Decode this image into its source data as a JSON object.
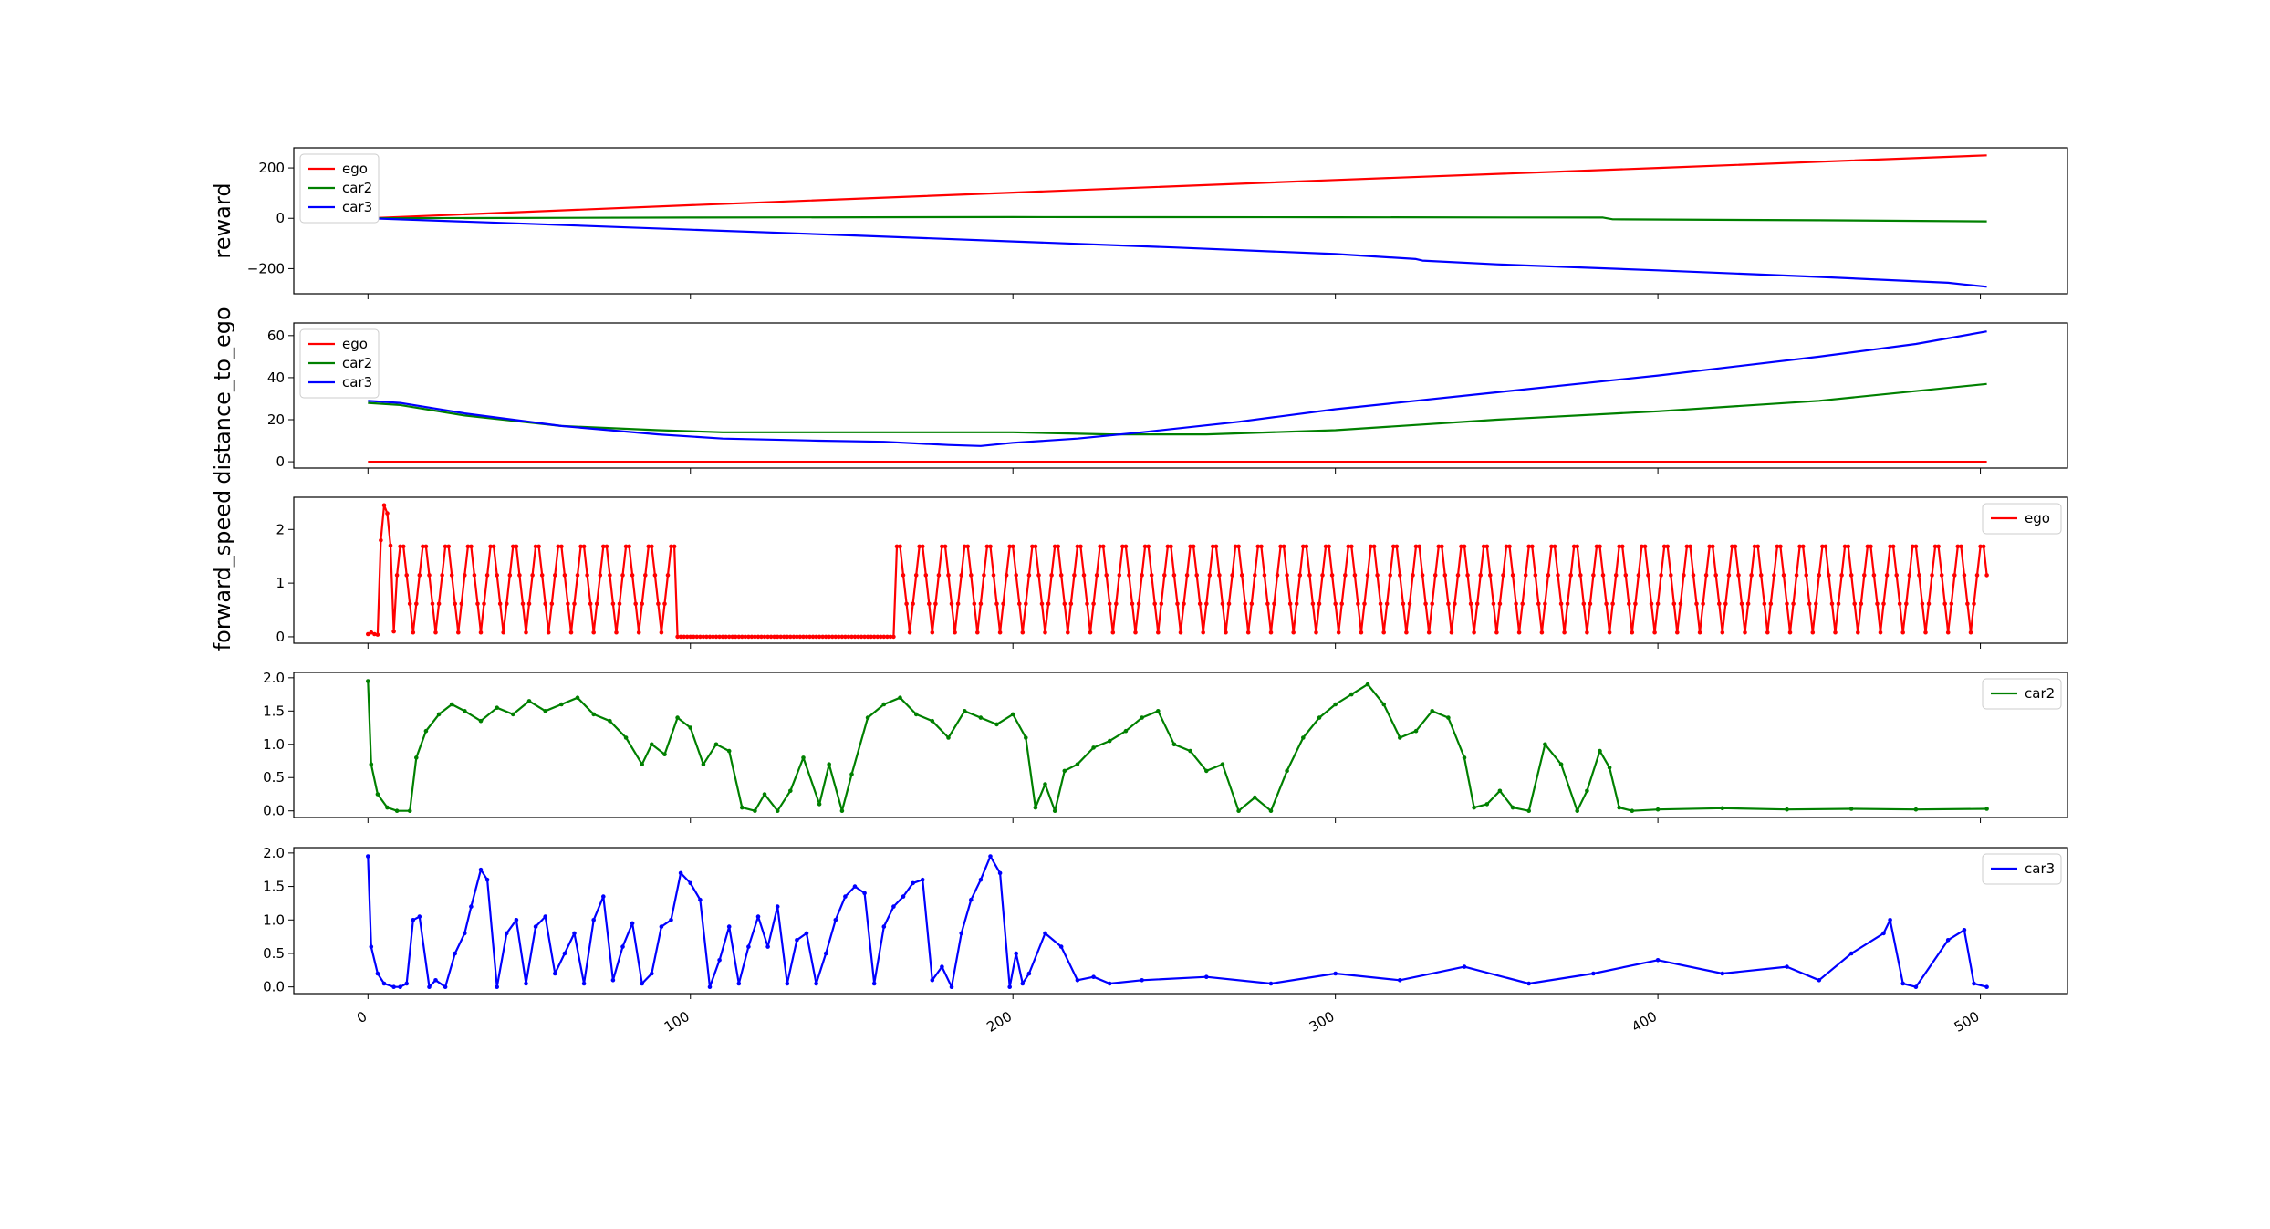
{
  "colors": {
    "ego": "#ff0000",
    "car2": "#008000",
    "car3": "#0000ff",
    "axes": "#000000",
    "background": "#ffffff"
  },
  "x_ticks": [
    "0",
    "100",
    "200",
    "300",
    "400",
    "500"
  ],
  "chart_data": [
    {
      "type": "line",
      "ylabel": "reward",
      "xlim": [
        -23,
        527
      ],
      "ylim": [
        -300,
        280
      ],
      "yticks": [
        -200,
        0,
        200
      ],
      "ytick_labels": [
        "−200",
        "0",
        "200"
      ],
      "legend": "top-left",
      "legend_entries": [
        "ego",
        "car2",
        "car3"
      ],
      "markers": false,
      "series": [
        {
          "name": "ego",
          "color": "#ff0000",
          "x": [
            0,
            100,
            200,
            300,
            400,
            502
          ],
          "y": [
            0,
            52,
            102,
            152,
            200,
            250
          ]
        },
        {
          "name": "car2",
          "color": "#008000",
          "x": [
            0,
            100,
            200,
            300,
            383,
            386,
            450,
            502
          ],
          "y": [
            0,
            3,
            5,
            4,
            3,
            -4,
            -8,
            -12
          ]
        },
        {
          "name": "car3",
          "color": "#0000ff",
          "x": [
            0,
            50,
            100,
            150,
            200,
            250,
            300,
            325,
            327,
            350,
            400,
            450,
            490,
            495,
            502
          ],
          "y": [
            0,
            -22,
            -45,
            -68,
            -92,
            -116,
            -142,
            -162,
            -168,
            -183,
            -207,
            -233,
            -256,
            -263,
            -272
          ]
        }
      ]
    },
    {
      "type": "line",
      "ylabel": "distance_to_ego",
      "xlim": [
        -23,
        527
      ],
      "ylim": [
        -3,
        66
      ],
      "yticks": [
        0,
        20,
        40,
        60
      ],
      "ytick_labels": [
        "0",
        "20",
        "40",
        "60"
      ],
      "legend": "top-left",
      "legend_entries": [
        "ego",
        "car2",
        "car3"
      ],
      "markers": false,
      "series": [
        {
          "name": "ego",
          "color": "#ff0000",
          "x": [
            0,
            502
          ],
          "y": [
            0,
            0
          ]
        },
        {
          "name": "car2",
          "color": "#008000",
          "x": [
            0,
            10,
            30,
            60,
            90,
            110,
            140,
            170,
            200,
            230,
            260,
            300,
            350,
            400,
            450,
            502
          ],
          "y": [
            28,
            27,
            22,
            17,
            15,
            14,
            14,
            14,
            14,
            13,
            13,
            15,
            20,
            24,
            29,
            37
          ]
        },
        {
          "name": "car3",
          "color": "#0000ff",
          "x": [
            0,
            10,
            30,
            60,
            90,
            110,
            140,
            160,
            180,
            190,
            200,
            220,
            240,
            270,
            300,
            350,
            400,
            450,
            480,
            502
          ],
          "y": [
            29,
            28,
            23,
            17,
            13,
            11,
            10,
            9.5,
            8,
            7.5,
            9,
            11,
            14,
            19,
            25,
            33,
            41,
            50,
            56,
            62
          ]
        }
      ]
    },
    {
      "type": "line",
      "ylabel": "forward_speed",
      "xlim": [
        -23,
        527
      ],
      "ylim": [
        -0.12,
        2.6
      ],
      "yticks": [
        0,
        1,
        2
      ],
      "ytick_labels": [
        "0",
        "1",
        "2"
      ],
      "legend": "top-right",
      "legend_entries": [
        "ego"
      ],
      "markers": true,
      "series": [
        {
          "name": "ego",
          "color": "#ff0000",
          "pattern": {
            "x_start": 0,
            "x_end": 502,
            "gap_start": 96,
            "gap_end": 163,
            "period": 7,
            "peak": 1.95,
            "trough": 0.08
          },
          "x": [
            0,
            1,
            2,
            3,
            4,
            5,
            6,
            7,
            8
          ],
          "y": [
            0.05,
            0.08,
            0.05,
            0.04,
            1.8,
            2.45,
            2.3,
            1.7,
            0.1
          ]
        }
      ]
    },
    {
      "type": "line",
      "ylabel": "",
      "xlim": [
        -23,
        527
      ],
      "ylim": [
        -0.1,
        2.08
      ],
      "yticks": [
        0.0,
        0.5,
        1.0,
        1.5,
        2.0
      ],
      "ytick_labels": [
        "0.0",
        "0.5",
        "1.0",
        "1.5",
        "2.0"
      ],
      "legend": "top-right",
      "legend_entries": [
        "car2"
      ],
      "markers": true,
      "series": [
        {
          "name": "car2",
          "color": "#008000",
          "x": [
            0,
            1,
            3,
            6,
            9,
            13,
            15,
            18,
            22,
            26,
            30,
            35,
            40,
            45,
            50,
            55,
            60,
            65,
            70,
            75,
            80,
            85,
            88,
            92,
            96,
            100,
            104,
            108,
            112,
            116,
            120,
            123,
            127,
            131,
            135,
            140,
            143,
            147,
            150,
            155,
            160,
            165,
            170,
            175,
            180,
            185,
            190,
            195,
            200,
            204,
            207,
            210,
            213,
            216,
            220,
            225,
            230,
            235,
            240,
            245,
            250,
            255,
            260,
            265,
            270,
            275,
            280,
            285,
            290,
            295,
            300,
            305,
            310,
            315,
            320,
            325,
            330,
            335,
            340,
            343,
            347,
            351,
            355,
            360,
            365,
            370,
            375,
            378,
            382,
            385,
            388,
            392,
            400,
            420,
            440,
            460,
            480,
            502
          ],
          "y": [
            1.95,
            0.7,
            0.25,
            0.05,
            0.0,
            0.0,
            0.8,
            1.2,
            1.45,
            1.6,
            1.5,
            1.35,
            1.55,
            1.45,
            1.65,
            1.5,
            1.6,
            1.7,
            1.45,
            1.35,
            1.1,
            0.7,
            1.0,
            0.85,
            1.4,
            1.25,
            0.7,
            1.0,
            0.9,
            0.05,
            0.0,
            0.25,
            0.0,
            0.3,
            0.8,
            0.1,
            0.7,
            0.0,
            0.55,
            1.4,
            1.6,
            1.7,
            1.45,
            1.35,
            1.1,
            1.5,
            1.4,
            1.3,
            1.45,
            1.1,
            0.05,
            0.4,
            0.0,
            0.6,
            0.7,
            0.95,
            1.05,
            1.2,
            1.4,
            1.5,
            1.0,
            0.9,
            0.6,
            0.7,
            0.0,
            0.2,
            0.0,
            0.6,
            1.1,
            1.4,
            1.6,
            1.75,
            1.9,
            1.6,
            1.1,
            1.2,
            1.5,
            1.4,
            0.8,
            0.05,
            0.1,
            0.3,
            0.05,
            0.0,
            1.0,
            0.7,
            0.0,
            0.3,
            0.9,
            0.65,
            0.05,
            0.0,
            0.02,
            0.04,
            0.02,
            0.03,
            0.02,
            0.03
          ]
        }
      ]
    },
    {
      "type": "line",
      "ylabel": "",
      "xlim": [
        -23,
        527
      ],
      "ylim": [
        -0.1,
        2.08
      ],
      "yticks": [
        0.0,
        0.5,
        1.0,
        1.5,
        2.0
      ],
      "ytick_labels": [
        "0.0",
        "0.5",
        "1.0",
        "1.5",
        "2.0"
      ],
      "legend": "top-right",
      "legend_entries": [
        "car3"
      ],
      "markers": true,
      "series": [
        {
          "name": "car3",
          "color": "#0000ff",
          "x": [
            0,
            1,
            3,
            5,
            8,
            10,
            12,
            14,
            16,
            19,
            21,
            24,
            27,
            30,
            32,
            35,
            37,
            40,
            43,
            46,
            49,
            52,
            55,
            58,
            61,
            64,
            67,
            70,
            73,
            76,
            79,
            82,
            85,
            88,
            91,
            94,
            97,
            100,
            103,
            106,
            109,
            112,
            115,
            118,
            121,
            124,
            127,
            130,
            133,
            136,
            139,
            142,
            145,
            148,
            151,
            154,
            157,
            160,
            163,
            166,
            169,
            172,
            175,
            178,
            181,
            184,
            187,
            190,
            193,
            196,
            199,
            201,
            203,
            205,
            210,
            215,
            220,
            225,
            230,
            240,
            260,
            280,
            300,
            320,
            340,
            360,
            380,
            400,
            420,
            440,
            450,
            460,
            470,
            472,
            476,
            480,
            490,
            495,
            498,
            502
          ],
          "y": [
            1.95,
            0.6,
            0.2,
            0.05,
            0.0,
            0.0,
            0.05,
            1.0,
            1.05,
            0.0,
            0.1,
            0.0,
            0.5,
            0.8,
            1.2,
            1.75,
            1.6,
            0.0,
            0.8,
            1.0,
            0.05,
            0.9,
            1.05,
            0.2,
            0.5,
            0.8,
            0.05,
            1.0,
            1.35,
            0.1,
            0.6,
            0.95,
            0.05,
            0.2,
            0.9,
            1.0,
            1.7,
            1.55,
            1.3,
            0.0,
            0.4,
            0.9,
            0.05,
            0.6,
            1.05,
            0.6,
            1.2,
            0.05,
            0.7,
            0.8,
            0.05,
            0.5,
            1.0,
            1.35,
            1.5,
            1.4,
            0.05,
            0.9,
            1.2,
            1.35,
            1.55,
            1.6,
            0.1,
            0.3,
            0.0,
            0.8,
            1.3,
            1.6,
            1.95,
            1.7,
            0.0,
            0.5,
            0.05,
            0.2,
            0.8,
            0.6,
            0.1,
            0.15,
            0.05,
            0.1,
            0.15,
            0.05,
            0.2,
            0.1,
            0.3,
            0.05,
            0.2,
            0.4,
            0.2,
            0.3,
            0.1,
            0.5,
            0.8,
            1.0,
            0.05,
            0.0,
            0.7,
            0.85,
            0.05,
            0.0
          ]
        }
      ]
    }
  ]
}
